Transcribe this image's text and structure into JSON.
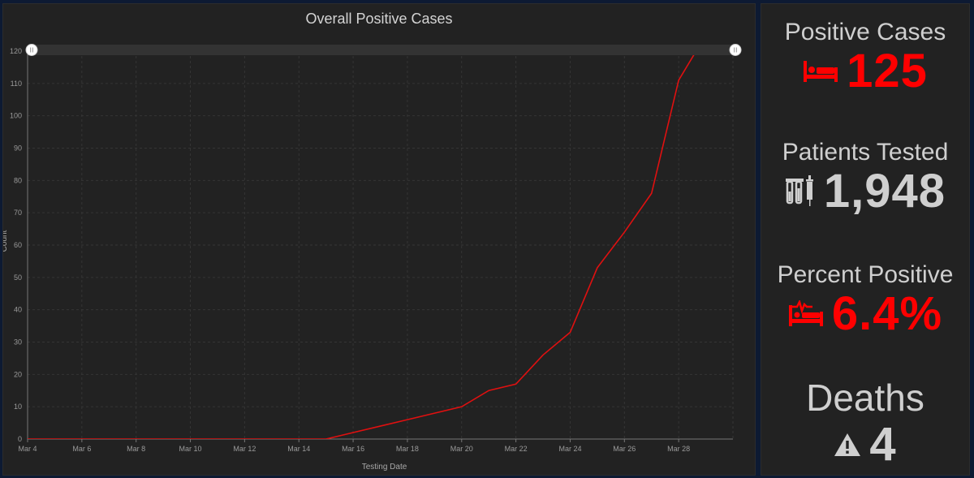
{
  "chart": {
    "title": "Overall Positive Cases",
    "xlabel": "Testing Date",
    "ylabel": "Count",
    "line_color": "#e01010"
  },
  "chart_data": {
    "type": "line",
    "title": "Overall Positive Cases",
    "xlabel": "Testing Date",
    "ylabel": "Count",
    "x_tick_labels": [
      "Mar 4",
      "Mar 6",
      "Mar 8",
      "Mar 10",
      "Mar 12",
      "Mar 14",
      "Mar 16",
      "Mar 18",
      "Mar 20",
      "Mar 22",
      "Mar 24",
      "Mar 26",
      "Mar 28"
    ],
    "y_ticks": [
      0,
      10,
      20,
      30,
      40,
      50,
      60,
      70,
      80,
      90,
      100,
      110,
      120
    ],
    "ylim": [
      0,
      120
    ],
    "xlim": [
      "Mar 4",
      "Mar 30"
    ],
    "grid": true,
    "series": [
      {
        "name": "",
        "x": [
          "Mar 4",
          "Mar 5",
          "Mar 6",
          "Mar 7",
          "Mar 8",
          "Mar 9",
          "Mar 10",
          "Mar 11",
          "Mar 12",
          "Mar 13",
          "Mar 14",
          "Mar 15",
          "Mar 16",
          "Mar 17",
          "Mar 18",
          "Mar 19",
          "Mar 20",
          "Mar 21",
          "Mar 22",
          "Mar 23",
          "Mar 24",
          "Mar 25",
          "Mar 26",
          "Mar 27",
          "Mar 28",
          "Mar 29"
        ],
        "values": [
          0,
          0,
          0,
          0,
          0,
          0,
          0,
          0,
          0,
          0,
          0,
          0,
          2,
          4,
          6,
          8,
          10,
          15,
          17,
          26,
          33,
          53,
          64,
          76,
          111,
          125
        ]
      }
    ]
  },
  "kpis": {
    "positive": {
      "label": "Positive Cases",
      "value": "125",
      "color": "#ff0000",
      "icon": "hospital-bed-icon"
    },
    "tested": {
      "label": "Patients Tested",
      "value": "1,948",
      "color": "#cfcfcf",
      "icon": "test-tubes-syringe-icon"
    },
    "percent": {
      "label": "Percent Positive",
      "value": "6.4%",
      "color": "#ff0000",
      "icon": "bed-heartbeat-icon"
    },
    "deaths": {
      "label": "Deaths",
      "value": "4",
      "color": "#cfcfcf",
      "icon": "warning-triangle-icon"
    }
  }
}
